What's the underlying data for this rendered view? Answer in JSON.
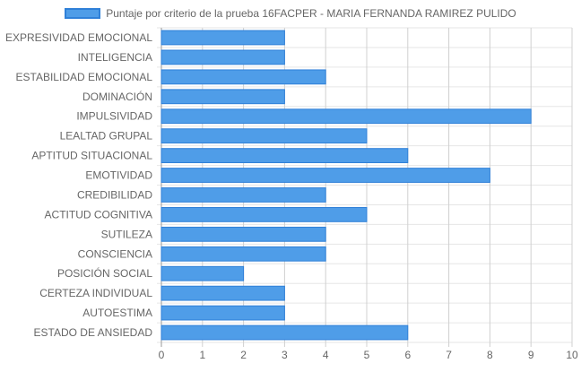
{
  "chart_data": {
    "type": "bar",
    "orientation": "horizontal",
    "categories": [
      "EXPRESIVIDAD EMOCIONAL",
      "INTELIGENCIA",
      "ESTABILIDAD EMOCIONAL",
      "DOMINACIÓN",
      "IMPULSIVIDAD",
      "LEALTAD GRUPAL",
      "APTITUD SITUACIONAL",
      "EMOTIVIDAD",
      "CREDIBILIDAD",
      "ACTITUD COGNITIVA",
      "SUTILEZA",
      "CONSCIENCIA",
      "POSICIÓN SOCIAL",
      "CERTEZA INDIVIDUAL",
      "AUTOESTIMA",
      "ESTADO DE ANSIEDAD"
    ],
    "series": [
      {
        "name": "Puntaje por criterio de la prueba 16FACPER - MARIA FERNANDA RAMIREZ PULIDO",
        "values": [
          3,
          3,
          4,
          3,
          9,
          5,
          6,
          8,
          4,
          5,
          4,
          4,
          2,
          3,
          3,
          6
        ],
        "color": "#4f9de8",
        "border_color": "#2f80d8"
      }
    ],
    "x_ticks": [
      "0",
      "1",
      "2",
      "3",
      "4",
      "5",
      "6",
      "7",
      "8",
      "9",
      "10"
    ],
    "xlim": [
      0,
      10
    ],
    "grid": true,
    "legend_position": "top-center",
    "title": "",
    "xlabel": "",
    "ylabel": ""
  }
}
